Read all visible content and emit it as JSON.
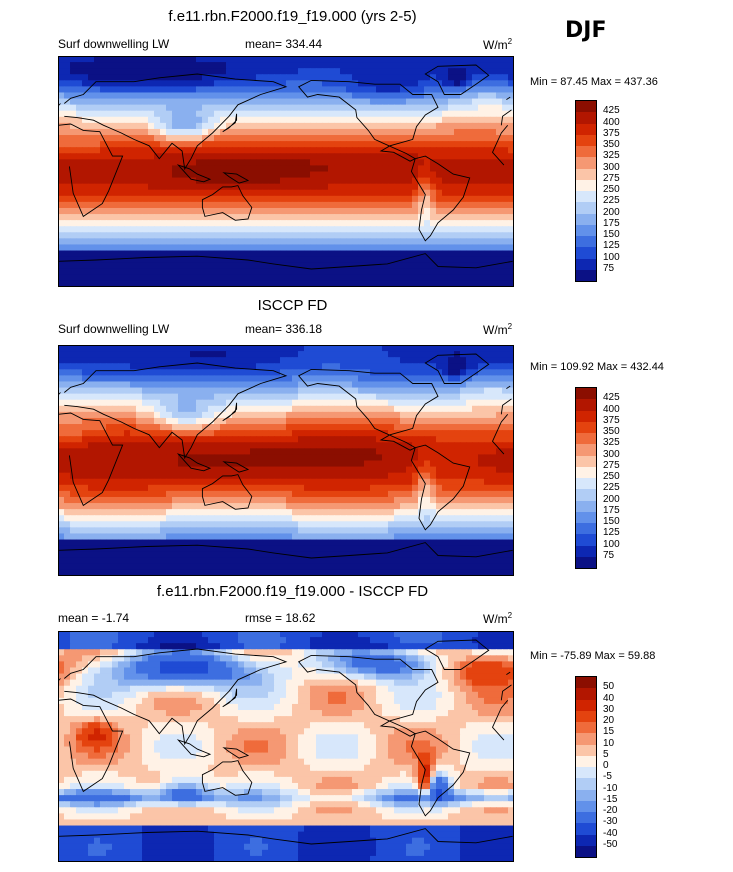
{
  "season": "DJF",
  "panels": [
    {
      "title": "f.e11.rbn.F2000.f19_f19.000 (yrs 2-5)",
      "left_label": "Surf downwelling LW",
      "center_label": "mean= 334.44",
      "units": "W/m",
      "units_sup": "2",
      "minmax": "Min =  87.45 Max = 437.36",
      "field": "model",
      "colorbar_ticks": [
        "425",
        "400",
        "375",
        "350",
        "325",
        "300",
        "275",
        "250",
        "225",
        "200",
        "175",
        "150",
        "125",
        "100",
        "75"
      ],
      "colors": [
        "#8b0e00",
        "#b21600",
        "#d02400",
        "#e4430f",
        "#ef6b3b",
        "#f59873",
        "#fbc5a8",
        "#fff2e6",
        "#d7e7fb",
        "#b1cdf5",
        "#8ab0ef",
        "#6291ea",
        "#3d6ee0",
        "#1f4bd4",
        "#0d27b2",
        "#0b1185"
      ]
    },
    {
      "title": "ISCCP FD",
      "left_label": "Surf downwelling LW",
      "center_label": "mean= 336.18",
      "units": "W/m",
      "units_sup": "2",
      "minmax": "Min = 109.92 Max = 432.44",
      "field": "obs",
      "colorbar_ticks": [
        "425",
        "400",
        "375",
        "350",
        "325",
        "300",
        "275",
        "250",
        "225",
        "200",
        "175",
        "150",
        "125",
        "100",
        "75"
      ],
      "colors": [
        "#8b0e00",
        "#b21600",
        "#d02400",
        "#e4430f",
        "#ef6b3b",
        "#f59873",
        "#fbc5a8",
        "#fff2e6",
        "#d7e7fb",
        "#b1cdf5",
        "#8ab0ef",
        "#6291ea",
        "#3d6ee0",
        "#1f4bd4",
        "#0d27b2",
        "#0b1185"
      ]
    },
    {
      "title": "f.e11.rbn.F2000.f19_f19.000 - ISCCP FD",
      "left_label": "mean =  -1.74",
      "center_label": "rmse =  18.62",
      "units": "W/m",
      "units_sup": "2",
      "minmax": "Min = -75.89 Max =  59.88",
      "field": "diff",
      "colorbar_ticks": [
        "50",
        "40",
        "30",
        "20",
        "15",
        "10",
        "5",
        "0",
        "-5",
        "-10",
        "-15",
        "-20",
        "-30",
        "-40",
        "-50"
      ],
      "colors": [
        "#8b0e00",
        "#b21600",
        "#d02400",
        "#e4430f",
        "#ef6b3b",
        "#f59873",
        "#fbc5a8",
        "#fff2e6",
        "#d7e7fb",
        "#b1cdf5",
        "#8ab0ef",
        "#6291ea",
        "#3d6ee0",
        "#1f4bd4",
        "#0d27b2",
        "#0b1185"
      ]
    }
  ]
}
